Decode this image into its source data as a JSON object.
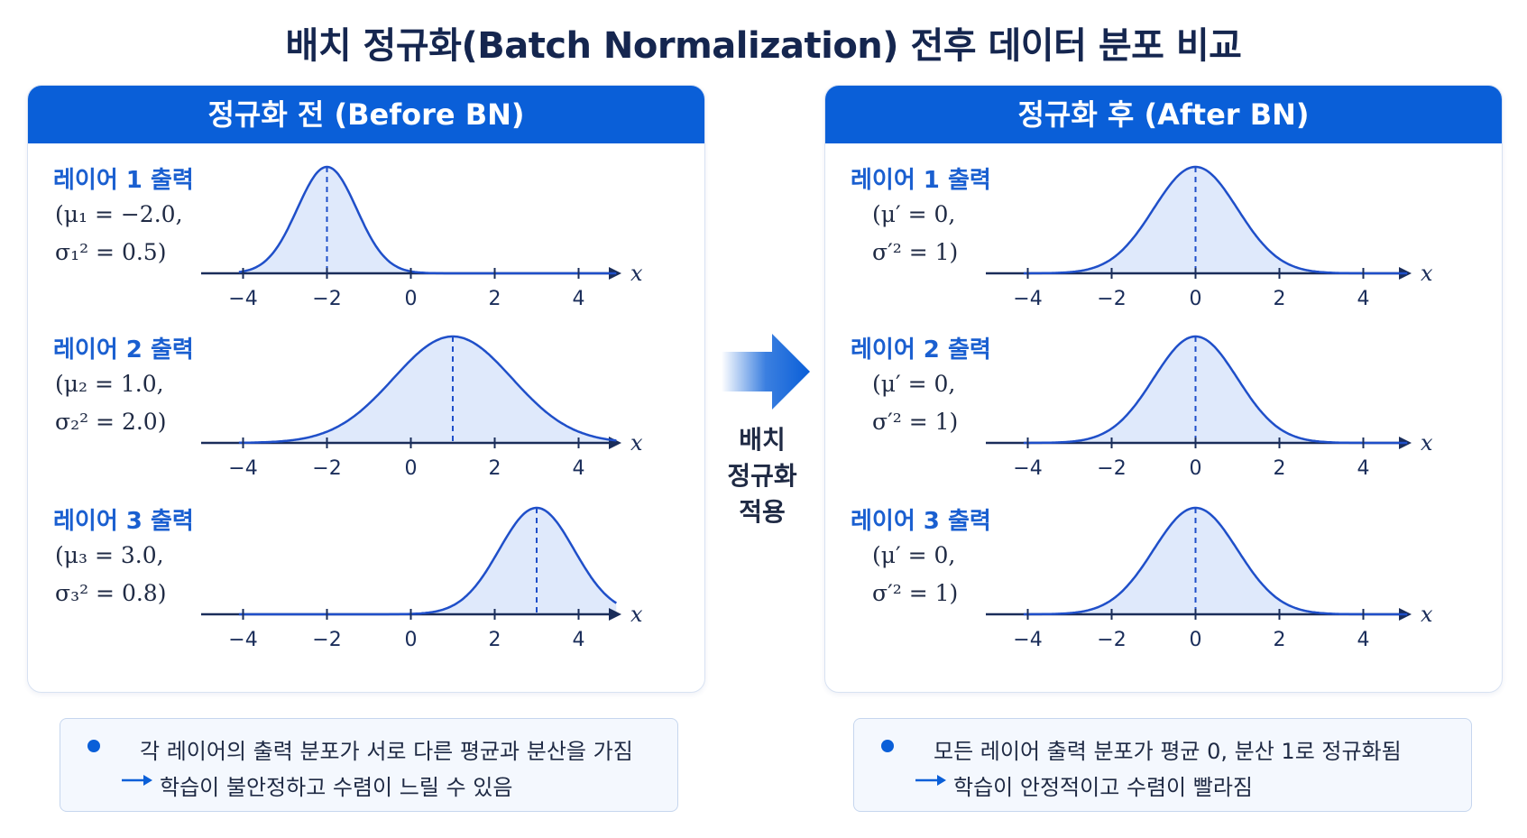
{
  "title": "배치 정규화(Batch Normalization) 전후 데이터 분포 비교",
  "colors": {
    "accent": "#0a5fd8",
    "curve": "#1f4fc9",
    "fill": "#dfe9fb",
    "axis": "#1a2d5a"
  },
  "before": {
    "header": "정규화 전 (Before BN)",
    "rows": [
      {
        "label": "레이어 1 출력",
        "param_mu": "(μ₁ = −2.0,",
        "param_sigma": "σ₁² = 0.5)",
        "mu": -2.0,
        "var": 0.5
      },
      {
        "label": "레이어 2 출력",
        "param_mu": "(μ₂ = 1.0,",
        "param_sigma": "σ₂² = 2.0)",
        "mu": 1.0,
        "var": 2.0
      },
      {
        "label": "레이어 3 출력",
        "param_mu": "(μ₃ = 3.0,",
        "param_sigma": "σ₃² = 0.8)",
        "mu": 3.0,
        "var": 0.8
      }
    ]
  },
  "after": {
    "header": "정규화 후 (After BN)",
    "rows": [
      {
        "label": "레이어 1 출력",
        "param_mu": "(μ′ = 0,",
        "param_sigma": "σ′² = 1)",
        "mu": 0,
        "var": 1
      },
      {
        "label": "레이어 2 출력",
        "param_mu": "(μ′ = 0,",
        "param_sigma": "σ′² = 1)",
        "mu": 0,
        "var": 1
      },
      {
        "label": "레이어 3 출력",
        "param_mu": "(μ′ = 0,",
        "param_sigma": "σ′² = 1)",
        "mu": 0,
        "var": 1
      }
    ]
  },
  "axis": {
    "ticks": [
      "−4",
      "−2",
      "0",
      "2",
      "4"
    ],
    "tick_values": [
      -4,
      -2,
      0,
      2,
      4
    ],
    "var_label": "x"
  },
  "middle": {
    "line1": "배치",
    "line2": "정규화",
    "line3": "적용"
  },
  "notes": {
    "left": {
      "line1": "각 레이어의 출력 분포가 서로 다른 평균과 분산을 가짐",
      "line2": "학습이 불안정하고 수렴이 느릴 수 있음"
    },
    "right": {
      "line1": "모든 레이어 출력 분포가 평균 0, 분산 1로 정규화됨",
      "line2": "학습이 안정적이고 수렴이 빨라짐"
    }
  }
}
